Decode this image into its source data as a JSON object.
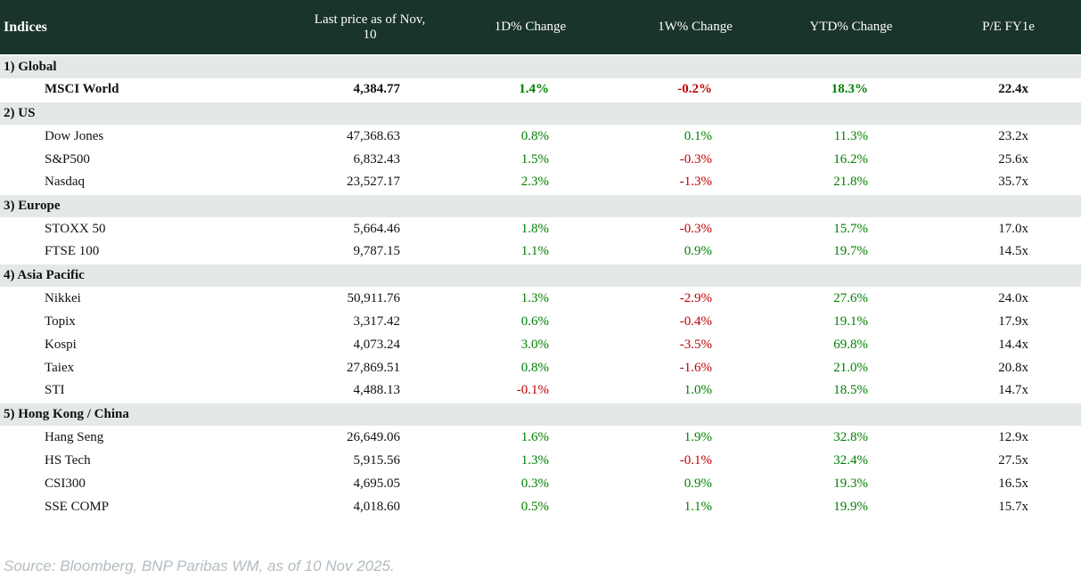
{
  "chart_data": {
    "type": "table",
    "title": "Indices",
    "columns": [
      "Indices",
      "Last price as of Nov, 10",
      "1D% Change",
      "1W% Change",
      "YTD% Change",
      "P/E FY1e"
    ],
    "sections": [
      {
        "label": "1) Global",
        "rows": [
          {
            "name": "MSCI World",
            "last_price": "4,384.77",
            "d1_change": "1.4%",
            "w1_change": "-0.2%",
            "ytd_change": "18.3%",
            "pe_fy1e": "22.4x",
            "bold": true
          }
        ]
      },
      {
        "label": "2) US",
        "rows": [
          {
            "name": "Dow Jones",
            "last_price": "47,368.63",
            "d1_change": "0.8%",
            "w1_change": "0.1%",
            "ytd_change": "11.3%",
            "pe_fy1e": "23.2x",
            "bold": false
          },
          {
            "name": "S&P500",
            "last_price": "6,832.43",
            "d1_change": "1.5%",
            "w1_change": "-0.3%",
            "ytd_change": "16.2%",
            "pe_fy1e": "25.6x",
            "bold": false
          },
          {
            "name": "Nasdaq",
            "last_price": "23,527.17",
            "d1_change": "2.3%",
            "w1_change": "-1.3%",
            "ytd_change": "21.8%",
            "pe_fy1e": "35.7x",
            "bold": false
          }
        ]
      },
      {
        "label": "3) Europe",
        "rows": [
          {
            "name": "STOXX 50",
            "last_price": "5,664.46",
            "d1_change": "1.8%",
            "w1_change": "-0.3%",
            "ytd_change": "15.7%",
            "pe_fy1e": "17.0x",
            "bold": false
          },
          {
            "name": "FTSE 100",
            "last_price": "9,787.15",
            "d1_change": "1.1%",
            "w1_change": "0.9%",
            "ytd_change": "19.7%",
            "pe_fy1e": "14.5x",
            "bold": false
          }
        ]
      },
      {
        "label": "4) Asia Pacific",
        "rows": [
          {
            "name": "Nikkei",
            "last_price": "50,911.76",
            "d1_change": "1.3%",
            "w1_change": "-2.9%",
            "ytd_change": "27.6%",
            "pe_fy1e": "24.0x",
            "bold": false
          },
          {
            "name": "Topix",
            "last_price": "3,317.42",
            "d1_change": "0.6%",
            "w1_change": "-0.4%",
            "ytd_change": "19.1%",
            "pe_fy1e": "17.9x",
            "bold": false
          },
          {
            "name": "Kospi",
            "last_price": "4,073.24",
            "d1_change": "3.0%",
            "w1_change": "-3.5%",
            "ytd_change": "69.8%",
            "pe_fy1e": "14.4x",
            "bold": false
          },
          {
            "name": "Taiex",
            "last_price": "27,869.51",
            "d1_change": "0.8%",
            "w1_change": "-1.6%",
            "ytd_change": "21.0%",
            "pe_fy1e": "20.8x",
            "bold": false
          },
          {
            "name": "STI",
            "last_price": "4,488.13",
            "d1_change": "-0.1%",
            "w1_change": "1.0%",
            "ytd_change": "18.5%",
            "pe_fy1e": "14.7x",
            "bold": false
          }
        ]
      },
      {
        "label": "5) Hong Kong / China",
        "rows": [
          {
            "name": "Hang Seng",
            "last_price": "26,649.06",
            "d1_change": "1.6%",
            "w1_change": "1.9%",
            "ytd_change": "32.8%",
            "pe_fy1e": "12.9x",
            "bold": false
          },
          {
            "name": "HS Tech",
            "last_price": "5,915.56",
            "d1_change": "1.3%",
            "w1_change": "-0.1%",
            "ytd_change": "32.4%",
            "pe_fy1e": "27.5x",
            "bold": false
          },
          {
            "name": "CSI300",
            "last_price": "4,695.05",
            "d1_change": "0.3%",
            "w1_change": "0.9%",
            "ytd_change": "19.3%",
            "pe_fy1e": "16.5x",
            "bold": false
          },
          {
            "name": "SSE COMP",
            "last_price": "4,018.60",
            "d1_change": "0.5%",
            "w1_change": "1.1%",
            "ytd_change": "19.9%",
            "pe_fy1e": "15.7x",
            "bold": false
          }
        ]
      }
    ]
  },
  "footer": {
    "source": "Source: Bloomberg, BNP Paribas WM, as of 10 Nov 2025."
  },
  "colors": {
    "header_bg": "#19332d",
    "header_text": "#ffffff",
    "section_bg": "#e4e9e6",
    "positive": "#008000",
    "negative": "#c00000",
    "text": "#111111",
    "source_text": "#b3bcc1"
  }
}
